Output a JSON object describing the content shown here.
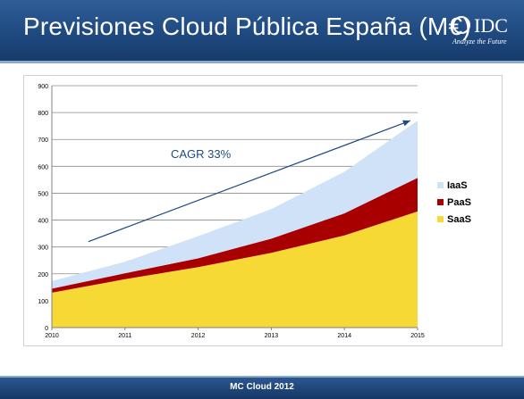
{
  "header": {
    "title": "Previsiones Cloud Pública España (M€)",
    "logo_text": "IDC",
    "logo_tagline": "Analyze the Future"
  },
  "footer": {
    "text": "MC Cloud 2012"
  },
  "colors": {
    "header_bg": "#1f4a80",
    "iaas": "#cfe2f8",
    "paas": "#a80000",
    "saas": "#f7d936",
    "arrow": "#1f4a80",
    "annotation": "#1f4a80"
  },
  "chart_data": {
    "type": "area",
    "stacked": true,
    "title": "Previsiones Cloud Pública España (M€)",
    "xlabel": "",
    "ylabel": "",
    "x": [
      2010,
      2011,
      2012,
      2013,
      2014,
      2015
    ],
    "x_tick_labels": [
      "2010",
      "2011",
      "2012",
      "2013",
      "2014",
      "2015"
    ],
    "ylim": [
      0,
      900
    ],
    "y_ticks": [
      0,
      100,
      200,
      300,
      400,
      500,
      600,
      700,
      800,
      900
    ],
    "grid": true,
    "legend_position": "right",
    "series": [
      {
        "name": "SaaS",
        "values": [
          130,
          180,
          225,
          278,
          343,
          432
        ],
        "color": "#f7d936"
      },
      {
        "name": "PaaS",
        "values": [
          15,
          22,
          33,
          53,
          82,
          125
        ],
        "color": "#a80000"
      },
      {
        "name": "IaaS",
        "values": [
          28,
          43,
          82,
          110,
          155,
          213
        ],
        "color": "#cfe2f8"
      }
    ],
    "annotation": {
      "text": "CAGR 33%",
      "arrow_from": [
        2010.5,
        320
      ],
      "arrow_to": [
        2014.9,
        770
      ]
    }
  }
}
